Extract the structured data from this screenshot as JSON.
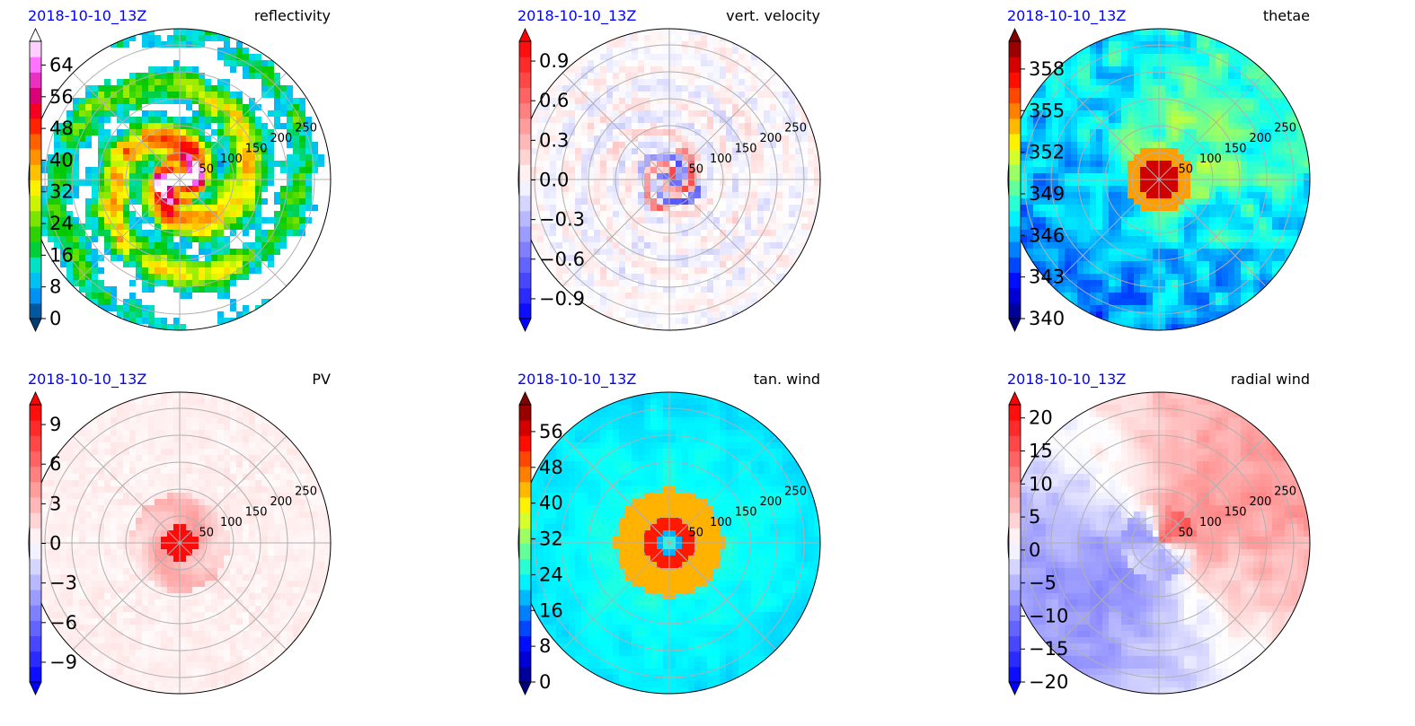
{
  "figure": {
    "panels": [
      {
        "id": "reflectivity",
        "timestamp": "2018-10-10_13Z",
        "variable": "reflectivity",
        "colorbar": {
          "ticks": [
            "0",
            "8",
            "16",
            "24",
            "32",
            "40",
            "48",
            "56",
            "64"
          ],
          "vmin": 0,
          "vmax": 70,
          "tick_values": [
            0,
            8,
            16,
            24,
            32,
            40,
            48,
            56,
            64
          ],
          "extend": "both"
        },
        "range_rings": [
          "50",
          "100",
          "150",
          "200",
          "250"
        ]
      },
      {
        "id": "vert-velocity",
        "timestamp": "2018-10-10_13Z",
        "variable": "vert. velocity",
        "colorbar": {
          "ticks": [
            "−0.9",
            "−0.6",
            "−0.3",
            "0.0",
            "0.3",
            "0.6",
            "0.9"
          ],
          "vmin": -1.05,
          "vmax": 1.05,
          "tick_values": [
            -0.9,
            -0.6,
            -0.3,
            0.0,
            0.3,
            0.6,
            0.9
          ],
          "extend": "both"
        },
        "range_rings": [
          "50",
          "100",
          "150",
          "200",
          "250"
        ]
      },
      {
        "id": "thetae",
        "timestamp": "2018-10-10_13Z",
        "variable": "thetae",
        "colorbar": {
          "ticks": [
            "340",
            "343",
            "346",
            "349",
            "352",
            "355",
            "358"
          ],
          "vmin": 340,
          "vmax": 360,
          "tick_values": [
            340,
            343,
            346,
            349,
            352,
            355,
            358
          ],
          "extend": "both"
        },
        "range_rings": [
          "50",
          "100",
          "150",
          "200",
          "250"
        ]
      },
      {
        "id": "pv",
        "timestamp": "2018-10-10_13Z",
        "variable": "PV",
        "colorbar": {
          "ticks": [
            "−9",
            "−6",
            "−3",
            "0",
            "3",
            "6",
            "9"
          ],
          "vmin": -10.5,
          "vmax": 10.5,
          "tick_values": [
            -9,
            -6,
            -3,
            0,
            3,
            6,
            9
          ],
          "extend": "both"
        },
        "range_rings": [
          "50",
          "100",
          "150",
          "200",
          "250"
        ]
      },
      {
        "id": "tan-wind",
        "timestamp": "2018-10-10_13Z",
        "variable": "tan. wind",
        "colorbar": {
          "ticks": [
            "0",
            "8",
            "16",
            "24",
            "32",
            "40",
            "48",
            "56"
          ],
          "vmin": 0,
          "vmax": 62,
          "tick_values": [
            0,
            8,
            16,
            24,
            32,
            40,
            48,
            56
          ],
          "extend": "both"
        },
        "range_rings": [
          "50",
          "100",
          "150",
          "200",
          "250"
        ]
      },
      {
        "id": "radial-wind",
        "timestamp": "2018-10-10_13Z",
        "variable": "radial wind",
        "colorbar": {
          "ticks": [
            "−20",
            "−15",
            "−10",
            "−5",
            "0",
            "5",
            "10",
            "15",
            "20"
          ],
          "vmin": -20,
          "vmax": 22,
          "tick_values": [
            -20,
            -15,
            -10,
            -5,
            0,
            5,
            10,
            15,
            20
          ],
          "extend": "both"
        },
        "range_rings": [
          "50",
          "100",
          "150",
          "200",
          "250"
        ]
      }
    ]
  },
  "colors": {
    "timestamp": "#0000ff",
    "jet": [
      "#00007f",
      "#0000ff",
      "#007fff",
      "#00ffff",
      "#7fff7f",
      "#ffff00",
      "#ff7f00",
      "#ff0000",
      "#7f0000"
    ],
    "bwr": [
      "#0000ff",
      "#ffffff",
      "#ff0000"
    ],
    "dbz": [
      "#003d73",
      "#0099ff",
      "#00e5e5",
      "#00c800",
      "#7fe500",
      "#ffff00",
      "#ffb300",
      "#ff6400",
      "#ff0000",
      "#d4008a",
      "#ff66ff",
      "#ffffff"
    ]
  },
  "chart_data": [
    {
      "type": "heatmap",
      "projection": "polar",
      "title": "reflectivity",
      "subtitle": "2018-10-10_13Z",
      "r_ticks": [
        50,
        100,
        150,
        200,
        250
      ],
      "rlim": [
        0,
        280
      ],
      "colorbar_range": [
        0,
        70
      ],
      "grid": true
    },
    {
      "type": "heatmap",
      "projection": "polar",
      "title": "vert. velocity",
      "subtitle": "2018-10-10_13Z",
      "r_ticks": [
        50,
        100,
        150,
        200,
        250
      ],
      "rlim": [
        0,
        280
      ],
      "colorbar_range": [
        -1.05,
        1.05
      ],
      "grid": true
    },
    {
      "type": "heatmap",
      "projection": "polar",
      "title": "thetae",
      "subtitle": "2018-10-10_13Z",
      "r_ticks": [
        50,
        100,
        150,
        200,
        250
      ],
      "rlim": [
        0,
        280
      ],
      "colorbar_range": [
        340,
        360
      ],
      "grid": true
    },
    {
      "type": "heatmap",
      "projection": "polar",
      "title": "PV",
      "subtitle": "2018-10-10_13Z",
      "r_ticks": [
        50,
        100,
        150,
        200,
        250
      ],
      "rlim": [
        0,
        280
      ],
      "colorbar_range": [
        -10.5,
        10.5
      ],
      "grid": true
    },
    {
      "type": "heatmap",
      "projection": "polar",
      "title": "tan. wind",
      "subtitle": "2018-10-10_13Z",
      "r_ticks": [
        50,
        100,
        150,
        200,
        250
      ],
      "rlim": [
        0,
        280
      ],
      "colorbar_range": [
        0,
        62
      ],
      "grid": true
    },
    {
      "type": "heatmap",
      "projection": "polar",
      "title": "radial wind",
      "subtitle": "2018-10-10_13Z",
      "r_ticks": [
        50,
        100,
        150,
        200,
        250
      ],
      "rlim": [
        0,
        280
      ],
      "colorbar_range": [
        -20,
        22
      ],
      "grid": true
    }
  ]
}
